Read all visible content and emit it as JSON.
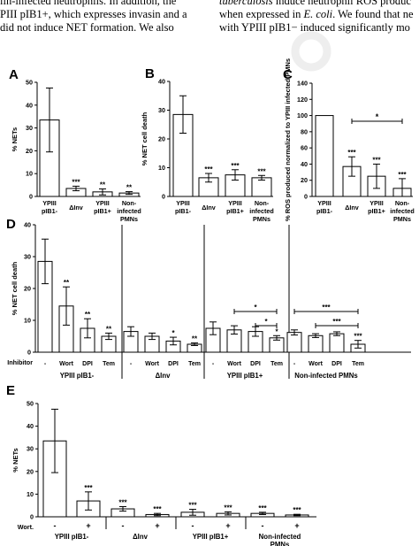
{
  "body_text": {
    "left_lines": [
      "lin-infected neutrophils. In addition, the",
      "PIII pIB1+, which expresses invasin and a",
      "did not induce NET formation. We also"
    ],
    "right_lines": [
      [
        {
          "t": "tuberculosis",
          "i": true
        },
        {
          "t": " induce neutrophil ROS produc",
          "i": false
        }
      ],
      [
        {
          "t": "when expressed in ",
          "i": false
        },
        {
          "t": "E. coli",
          "i": true
        },
        {
          "t": ". We found that ne",
          "i": false
        }
      ],
      [
        {
          "t": "with YPIII pIB1− induced significantly mo",
          "i": false
        }
      ]
    ]
  },
  "chart_data": [
    {
      "panel": "A",
      "type": "bar",
      "ylabel": "% NETs",
      "ylim": [
        0,
        50
      ],
      "yticks": [
        0,
        10,
        20,
        30,
        40,
        50
      ],
      "categories": [
        [
          "YPIII",
          "pIB1-"
        ],
        [
          "ΔInv"
        ],
        [
          "YPIII",
          "pIB1+"
        ],
        [
          "Non-",
          "infected",
          "PMNs"
        ]
      ],
      "values": [
        33.5,
        3.5,
        2,
        1.5
      ],
      "errors": [
        14,
        1,
        1.3,
        0.6
      ],
      "sig": [
        "",
        "***",
        "**",
        "**"
      ]
    },
    {
      "panel": "B",
      "type": "bar",
      "ylabel": "% NET cell death",
      "ylim": [
        0,
        40
      ],
      "yticks": [
        0,
        10,
        20,
        30,
        40
      ],
      "categories": [
        [
          "YPIII",
          "pIB1-"
        ],
        [
          "ΔInv"
        ],
        [
          "YPIII",
          "pIB1+"
        ],
        [
          "Non-",
          "infected",
          "PMNs"
        ]
      ],
      "values": [
        28.5,
        6.5,
        7.5,
        6.5
      ],
      "errors": [
        6.5,
        1.5,
        1.8,
        0.8
      ],
      "sig": [
        "",
        "***",
        "***",
        "***"
      ]
    },
    {
      "panel": "C",
      "type": "bar",
      "ylabel": "% ROS produced normalized to YPIII infected PMNs",
      "ylim": [
        0,
        140
      ],
      "yticks": [
        0,
        20,
        40,
        60,
        80,
        100,
        120,
        140
      ],
      "categories": [
        [
          "YPIII",
          "pIB1-"
        ],
        [
          "ΔInv"
        ],
        [
          "YPIII",
          "pIB1+"
        ],
        [
          "Non-",
          "infected",
          "PMNs"
        ]
      ],
      "values": [
        100,
        37,
        25,
        10
      ],
      "errors": [
        0,
        12,
        15,
        12
      ],
      "sig": [
        "",
        "***",
        "***",
        "***"
      ],
      "brackets": [
        {
          "from": 1,
          "to": 3,
          "label": "*"
        }
      ]
    },
    {
      "panel": "D",
      "type": "bar",
      "ylabel": "% NET cell death",
      "ylim": [
        0,
        40
      ],
      "yticks": [
        0,
        10,
        20,
        30,
        40
      ],
      "row_label": "Inhibitor",
      "inhibitors": [
        "-",
        "Wort",
        "DPI",
        "Tem"
      ],
      "groups": [
        {
          "name": "YPIII pIB1-",
          "values": [
            28.5,
            14.5,
            7.5,
            5
          ],
          "errors": [
            7,
            6,
            3,
            1
          ],
          "sig": [
            "",
            "**",
            "**",
            "**"
          ],
          "brackets": []
        },
        {
          "name": "ΔInv",
          "values": [
            6.5,
            5,
            3.5,
            2.5
          ],
          "errors": [
            1.5,
            1,
            1.2,
            0.4
          ],
          "sig": [
            "",
            "",
            "*",
            "**"
          ],
          "brackets": []
        },
        {
          "name": "YPIII pIB1+",
          "values": [
            7.5,
            7,
            6.5,
            4.5
          ],
          "errors": [
            2,
            1.3,
            1.5,
            0.7
          ],
          "sig": [
            "",
            "",
            "",
            "*"
          ],
          "brackets": [
            {
              "from": 1,
              "to": 3,
              "level": 2,
              "label": "*"
            },
            {
              "from": 2,
              "to": 3,
              "level": 1,
              "label": "*"
            }
          ]
        },
        {
          "name": "Non-infected PMNs",
          "values": [
            6.2,
            5.2,
            5.8,
            2.5
          ],
          "errors": [
            0.8,
            0.6,
            0.6,
            1.2
          ],
          "sig": [
            "",
            "",
            "",
            "***"
          ],
          "brackets": [
            {
              "from": 0,
              "to": 3,
              "level": 2,
              "label": "***"
            },
            {
              "from": 1,
              "to": 3,
              "level": 1,
              "label": "***"
            }
          ]
        }
      ]
    },
    {
      "panel": "E",
      "type": "bar",
      "ylabel": "% NETs",
      "ylim": [
        0,
        50
      ],
      "yticks": [
        0,
        10,
        20,
        30,
        40,
        50
      ],
      "row_label": "Wort.",
      "treatments": [
        "-",
        "+"
      ],
      "groups": [
        {
          "name": "YPIII pIB1-",
          "values": [
            33.5,
            7
          ],
          "errors": [
            14,
            4
          ],
          "sig": [
            "",
            "***"
          ]
        },
        {
          "name": "ΔInv",
          "values": [
            3.5,
            1
          ],
          "errors": [
            1,
            0.5
          ],
          "sig": [
            "***",
            "***"
          ]
        },
        {
          "name": "YPIII pIB1+",
          "values": [
            2,
            1.5
          ],
          "errors": [
            1.3,
            0.7
          ],
          "sig": [
            "***",
            "***"
          ]
        },
        {
          "name": "Non-infected PMNs",
          "group_label_lines": [
            "Non-infected",
            "PMNs"
          ],
          "values": [
            1.5,
            0.8
          ],
          "errors": [
            0.5,
            0.3
          ],
          "sig": [
            "***",
            "***"
          ]
        }
      ]
    }
  ]
}
